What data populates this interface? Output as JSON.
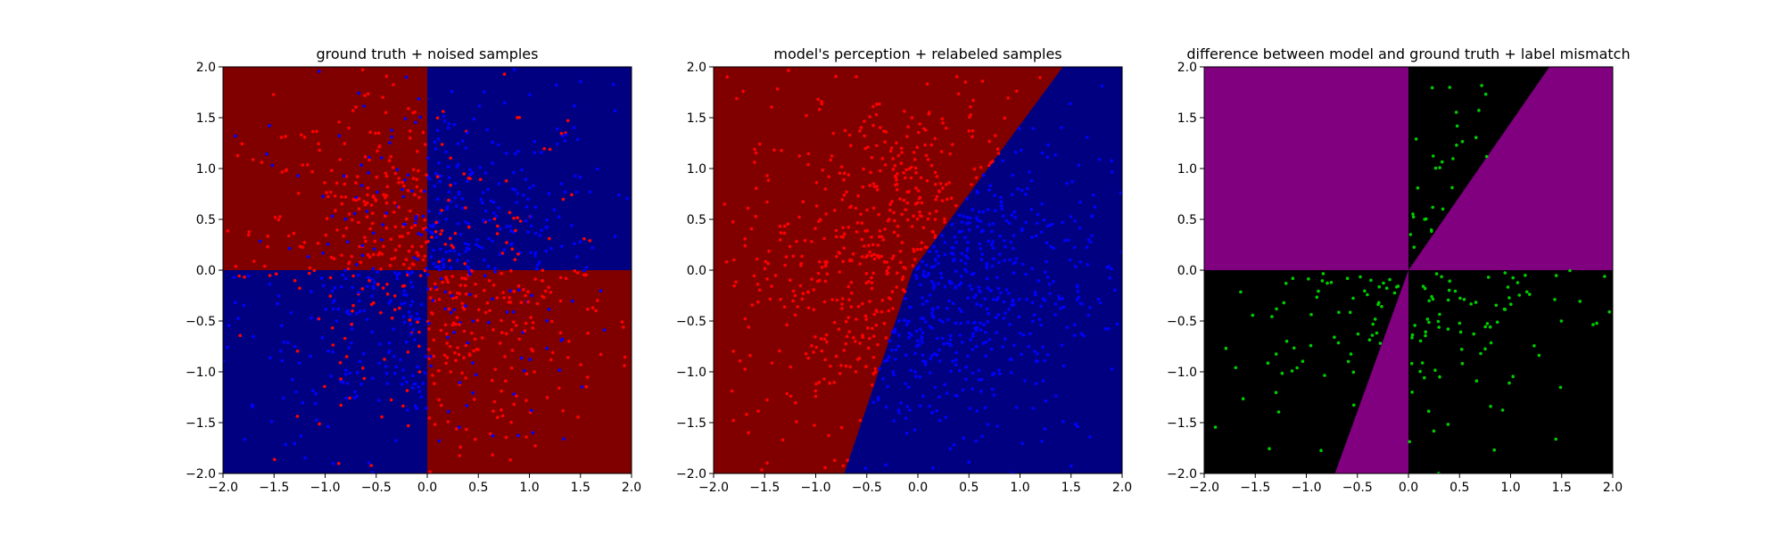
{
  "chart_data": [
    {
      "type": "scatter",
      "title": "ground truth + noised samples",
      "xlabel": "",
      "ylabel": "",
      "xlim": [
        -2.0,
        2.0
      ],
      "ylim": [
        -2.0,
        2.0
      ],
      "x_ticks": [
        "−2.0",
        "−1.5",
        "−1.0",
        "−0.5",
        "0.0",
        "0.5",
        "1.0",
        "1.5",
        "2.0"
      ],
      "y_ticks": [
        "2.0",
        "1.5",
        "1.0",
        "0.5",
        "0.0",
        "−0.5",
        "−1.0",
        "−1.5",
        "−2.0"
      ],
      "background_regions": [
        {
          "quadrant": "top-left",
          "color": "#800000"
        },
        {
          "quadrant": "top-right",
          "color": "#000080"
        },
        {
          "quadrant": "bottom-left",
          "color": "#000080"
        },
        {
          "quadrant": "bottom-right",
          "color": "#800000"
        }
      ],
      "boundaries": [
        "x = 0",
        "y = 0"
      ],
      "point_colors": [
        "#ff0000",
        "#0000ff"
      ],
      "point_size": "small",
      "grid": false
    },
    {
      "type": "scatter",
      "title": "model's perception + relabeled samples",
      "xlabel": "",
      "ylabel": "",
      "xlim": [
        -2.0,
        2.0
      ],
      "ylim": [
        -2.0,
        2.0
      ],
      "x_ticks": [
        "−2.0",
        "−1.5",
        "−1.0",
        "−0.5",
        "0.0",
        "0.5",
        "1.0",
        "1.5",
        "2.0"
      ],
      "y_ticks": [
        "2.0",
        "1.5",
        "1.0",
        "0.5",
        "0.0",
        "−0.5",
        "−1.0",
        "−1.5",
        "−2.0"
      ],
      "background_regions": [
        {
          "region": "left of boundary",
          "color": "#800000"
        },
        {
          "region": "right of boundary",
          "color": "#000080"
        }
      ],
      "boundary_line": {
        "points": [
          [
            1.42,
            2.0
          ],
          [
            -0.05,
            0.0
          ],
          [
            -0.72,
            -2.0
          ]
        ]
      },
      "point_colors": [
        "#ff0000",
        "#0000ff"
      ],
      "point_size": "small",
      "grid": false
    },
    {
      "type": "scatter",
      "title": "difference between model and ground truth + label mismatch",
      "xlabel": "",
      "ylabel": "",
      "xlim": [
        -2.0,
        2.0
      ],
      "ylim": [
        -2.0,
        2.0
      ],
      "x_ticks": [
        "−2.0",
        "−1.5",
        "−1.0",
        "−0.5",
        "0.0",
        "0.5",
        "1.0",
        "1.5",
        "2.0"
      ],
      "y_ticks": [
        "2.0",
        "1.5",
        "1.0",
        "0.5",
        "0.0",
        "−0.5",
        "−1.0",
        "−1.5",
        "−2.0"
      ],
      "background_regions": [
        {
          "region": "model and ground truth differ",
          "color": "#800080"
        },
        {
          "region": "model and ground truth agree",
          "color": "#000000"
        }
      ],
      "boundary_line": {
        "points": [
          [
            1.38,
            2.0
          ],
          [
            0.0,
            0.0
          ],
          [
            -0.72,
            -2.0
          ]
        ]
      },
      "point_colors": [
        "#00cc00"
      ],
      "point_size": "small",
      "grid": false
    }
  ]
}
